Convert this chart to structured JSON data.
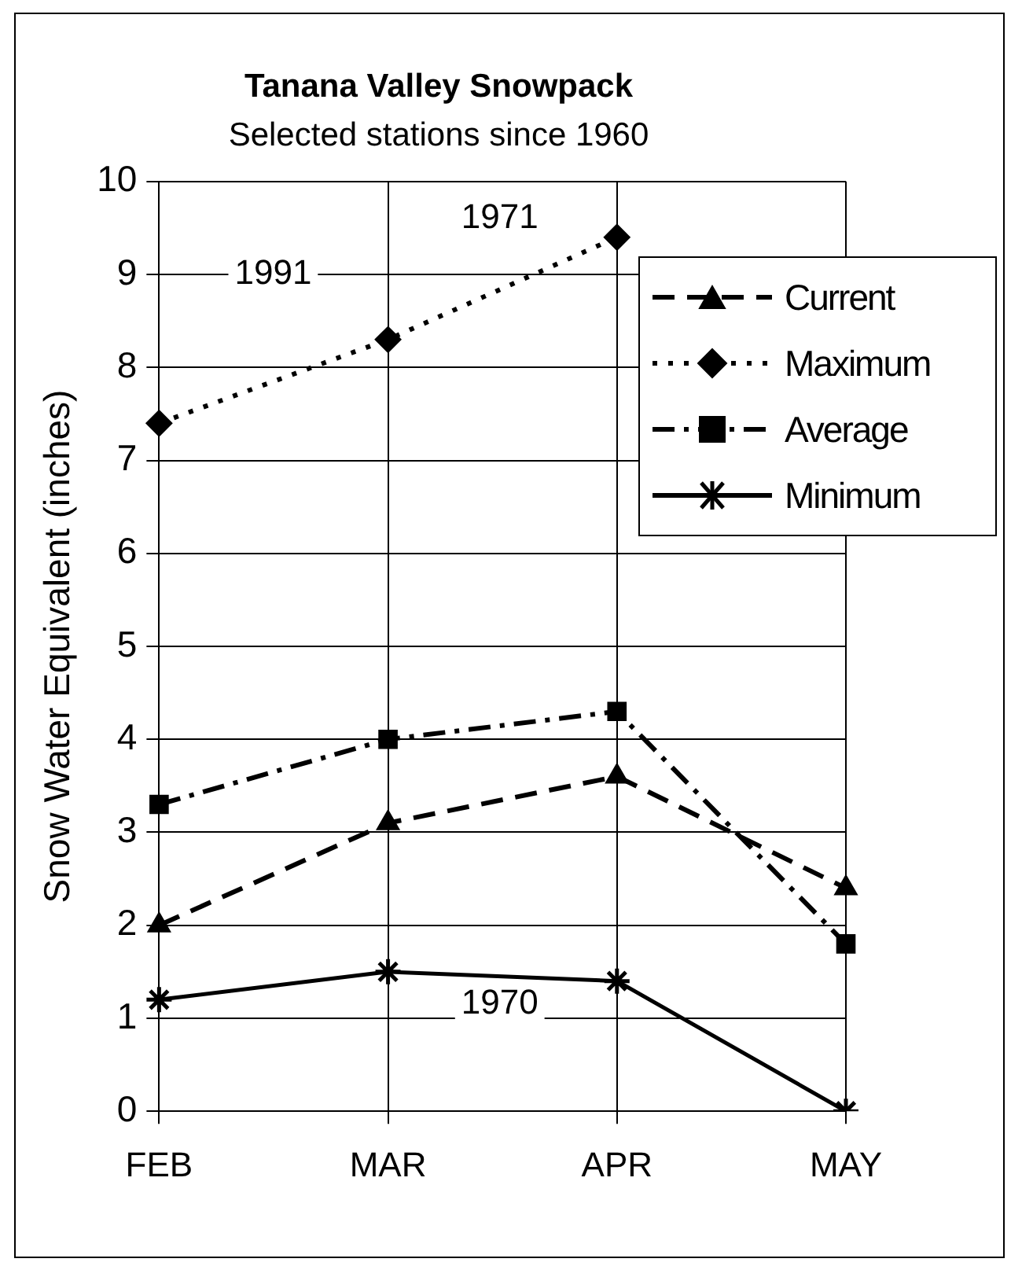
{
  "chart_data": {
    "type": "line",
    "title": "Tanana Valley Snowpack",
    "subtitle": "Selected stations since 1960",
    "ylabel": "Snow Water Equivalent (inches)",
    "categories": [
      "FEB",
      "MAR",
      "APR",
      "MAY"
    ],
    "series": [
      {
        "name": "Current",
        "color": "#000000",
        "values": [
          2.0,
          3.1,
          3.6,
          2.4
        ],
        "marker": "triangle",
        "line_style": "dashed"
      },
      {
        "name": "Maximum",
        "color": "#000000",
        "values": [
          7.4,
          8.3,
          9.4,
          null
        ],
        "marker": "diamond",
        "line_style": "dotted"
      },
      {
        "name": "Average",
        "color": "#000000",
        "values": [
          3.3,
          4.0,
          4.3,
          1.8
        ],
        "marker": "square",
        "line_style": "dashdot"
      },
      {
        "name": "Minimum",
        "color": "#000000",
        "values": [
          1.2,
          1.5,
          1.4,
          0
        ],
        "marker": "cross",
        "line_style": "solid"
      }
    ],
    "ylim": [
      0,
      10
    ],
    "yticks": [
      0,
      1,
      2,
      3,
      4,
      5,
      6,
      7,
      8,
      9,
      10
    ],
    "grid": true,
    "legend": "top right",
    "annotations": [
      "1991",
      "1971",
      "1970"
    ]
  }
}
